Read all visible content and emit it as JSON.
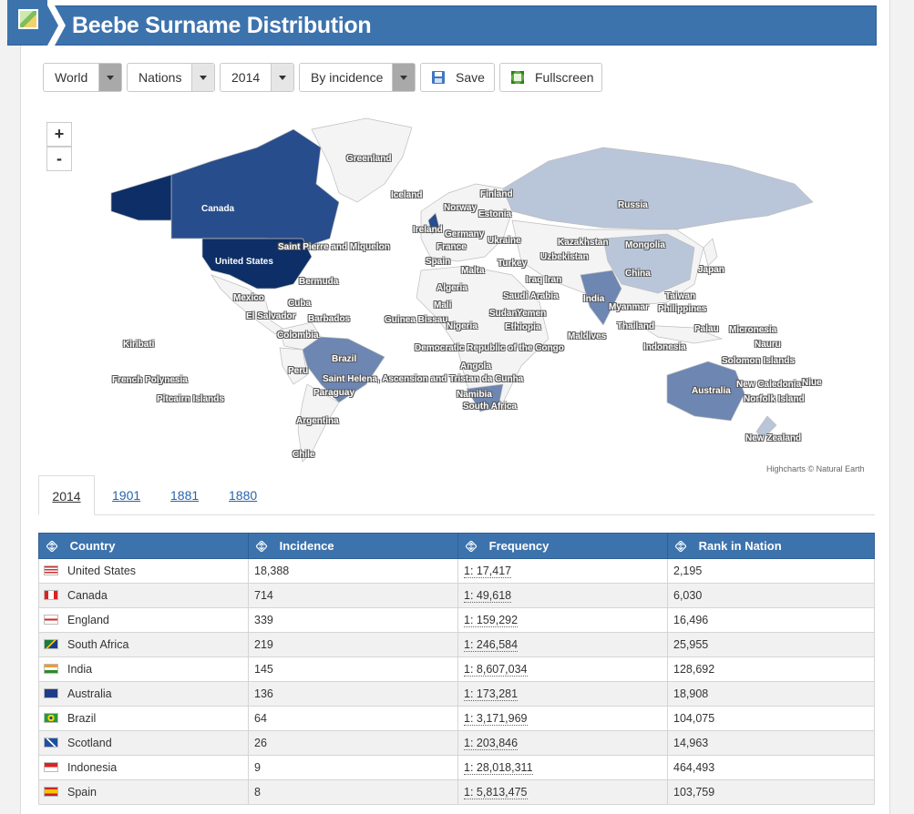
{
  "page": {
    "title": "Beebe Surname Distribution"
  },
  "toolbar": {
    "region_select": "World",
    "level_select": "Nations",
    "year_select": "2014",
    "mode_select": "By incidence",
    "save_label": "Save",
    "fullscreen_label": "Fullscreen"
  },
  "map": {
    "zoom_in": "+",
    "zoom_out": "-",
    "credit": "Highcharts © Natural Earth",
    "colors": {
      "high": "#0d2e66",
      "mid_high": "#284d8c",
      "mid": "#6d86b2",
      "low": "#b9c5d9",
      "none": "#f4f4f4",
      "border": "#bdbdbd"
    },
    "labels": [
      "Greenland",
      "Iceland",
      "Finland",
      "Norway",
      "Estonia",
      "Russia",
      "Ireland",
      "Germany",
      "Ukraine",
      "Kazakhstan",
      "France",
      "Mongolia",
      "Spain",
      "Turkey",
      "Uzbekistan",
      "Malta",
      "Iraq",
      "Iran",
      "Japan",
      "China",
      "Algeria",
      "Saudi Arabia",
      "India",
      "Taiwan",
      "Mali",
      "Myanmar",
      "Philippines",
      "Guinea Bissau",
      "Sudan",
      "Yemen",
      "Nigeria",
      "Ethiopia",
      "Thailand",
      "Palau",
      "Micronesia",
      "Maldives",
      "Nauru",
      "Indonesia",
      "Democratic Republic of the Congo",
      "Solomon Islands",
      "Angola",
      "Saint Helena, Ascension and Tristan da Cunha",
      "Namibia",
      "South Africa",
      "Australia",
      "New Caledonia",
      "Niue",
      "Norfolk Island",
      "New Zealand",
      "Canada",
      "United States",
      "Saint Pierre and Miquelon",
      "Bermuda",
      "Mexico",
      "Cuba",
      "El Salvador",
      "Barbados",
      "Colombia",
      "Kiribati",
      "Brazil",
      "French Polynesia",
      "Peru",
      "Paraguay",
      "Pitcairn Islands",
      "Argentina",
      "Chile"
    ]
  },
  "tabs": [
    "2014",
    "1901",
    "1881",
    "1880"
  ],
  "table": {
    "headers": [
      "Country",
      "Incidence",
      "Frequency",
      "Rank in Nation"
    ],
    "rows": [
      {
        "country": "United States",
        "flag": "us-flag",
        "incidence": "18,388",
        "frequency": "1: 17,417",
        "rank": "2,195"
      },
      {
        "country": "Canada",
        "flag": "ca-flag",
        "incidence": "714",
        "frequency": "1: 49,618",
        "rank": "6,030"
      },
      {
        "country": "England",
        "flag": "en-flag",
        "incidence": "339",
        "frequency": "1: 159,292",
        "rank": "16,496"
      },
      {
        "country": "South Africa",
        "flag": "za-flag",
        "incidence": "219",
        "frequency": "1: 246,584",
        "rank": "25,955"
      },
      {
        "country": "India",
        "flag": "in-flag",
        "incidence": "145",
        "frequency": "1: 8,607,034",
        "rank": "128,692"
      },
      {
        "country": "Australia",
        "flag": "au-flag",
        "incidence": "136",
        "frequency": "1: 173,281",
        "rank": "18,908"
      },
      {
        "country": "Brazil",
        "flag": "br-flag",
        "incidence": "64",
        "frequency": "1: 3,171,969",
        "rank": "104,075"
      },
      {
        "country": "Scotland",
        "flag": "sc-flag",
        "incidence": "26",
        "frequency": "1: 203,846",
        "rank": "14,963"
      },
      {
        "country": "Indonesia",
        "flag": "id-flag",
        "incidence": "9",
        "frequency": "1: 28,018,311",
        "rank": "464,493"
      },
      {
        "country": "Spain",
        "flag": "es-flag",
        "incidence": "8",
        "frequency": "1: 5,813,475",
        "rank": "103,759"
      }
    ]
  }
}
